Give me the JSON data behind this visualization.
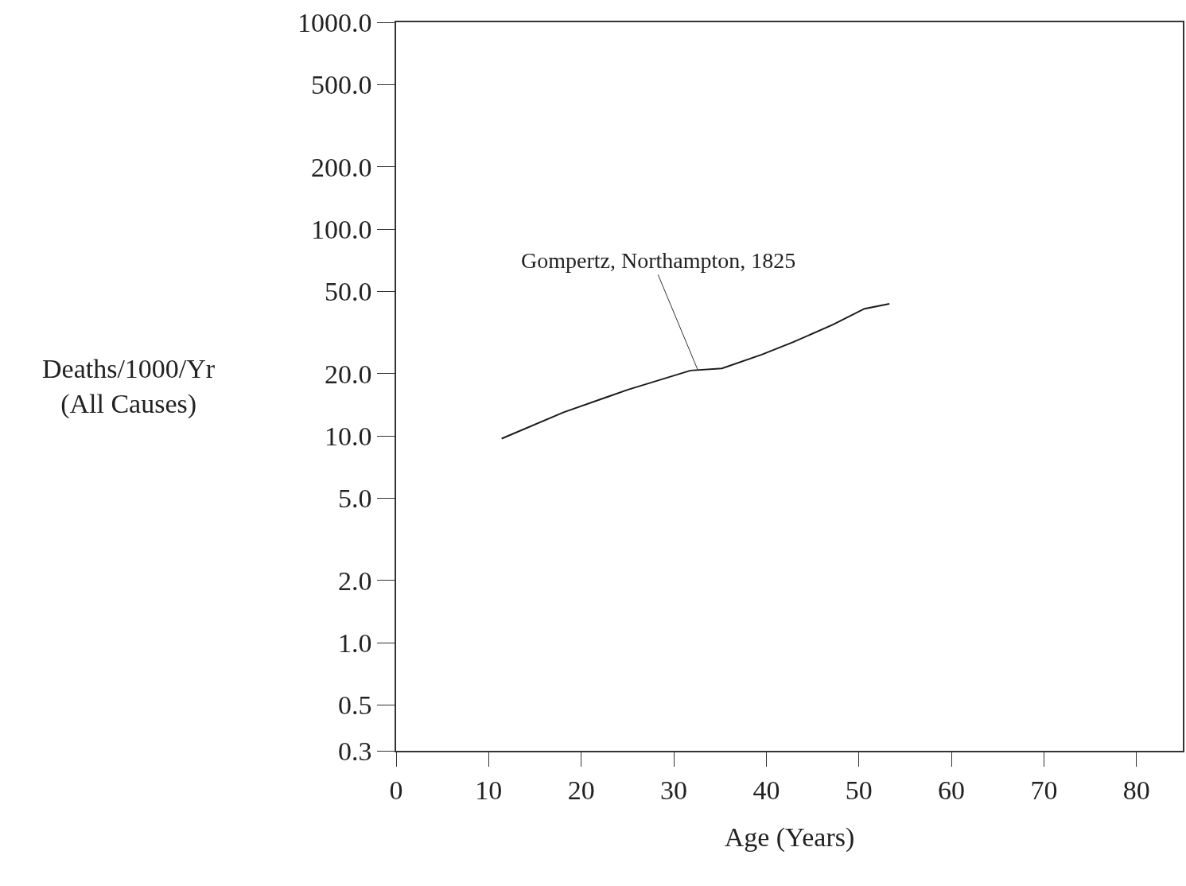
{
  "chart_data": {
    "type": "line",
    "xlabel": "Age (Years)",
    "ylabel": "Deaths/1000/Yr\n(All Causes)",
    "x": [
      11.4,
      18.1,
      25.0,
      31.8,
      35.2,
      39.5,
      42.9,
      47.2,
      50.6,
      53.3
    ],
    "series": [
      {
        "color": "#1a1a1a",
        "values": [
          9.7,
          13.0,
          16.7,
          20.7,
          21.2,
          24.7,
          28.4,
          34.5,
          41.2,
          43.5
        ]
      }
    ],
    "log": "y",
    "marker": "none",
    "line_style": "solid",
    "xlim": [
      0,
      85
    ],
    "xticks": [
      0,
      10,
      20,
      30,
      40,
      50,
      60,
      70,
      80
    ],
    "ylim": [
      0.3,
      1000
    ],
    "yticks": [
      {
        "value": 1000,
        "label": "1000.0"
      },
      {
        "value": 500,
        "label": "500.0"
      },
      {
        "value": 200,
        "label": "200.0"
      },
      {
        "value": 100,
        "label": "100.0"
      },
      {
        "value": 50,
        "label": "50.0"
      },
      {
        "value": 20,
        "label": "20.0"
      },
      {
        "value": 10,
        "label": "10.0"
      },
      {
        "value": 5,
        "label": "5.0"
      },
      {
        "value": 2,
        "label": "2.0"
      },
      {
        "value": 1,
        "label": "1.0"
      },
      {
        "value": 0.5,
        "label": "0.5"
      },
      {
        "value": 0.3,
        "label": "0.3"
      }
    ],
    "annotations": [
      {
        "text": "Gompertz, Northampton, 1825",
        "x": 32.6,
        "y": 20.8
      }
    ]
  }
}
